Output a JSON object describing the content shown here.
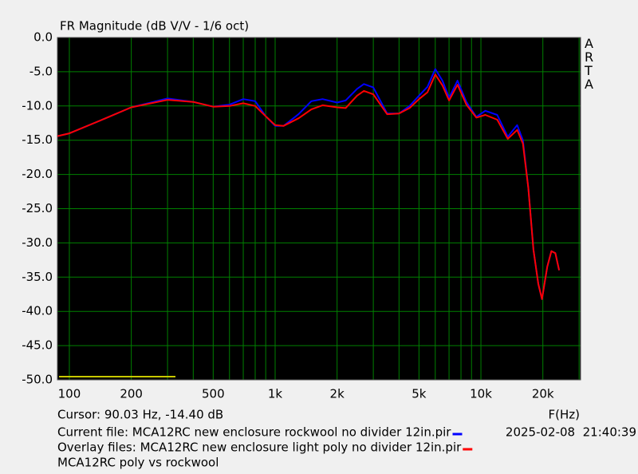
{
  "chart_data": {
    "type": "line",
    "title": "FR Magnitude (dB V/V - 1/6 oct)",
    "x_label": "F(Hz)",
    "watermark": "ARTA",
    "cursor": "Cursor: 90.03 Hz, -14.40 dB",
    "timestamp": "2025-02-08  21:40:39",
    "comment": "MCA12RC poly vs rockwool",
    "x_scale": "log",
    "grid": true,
    "xlim": [
      87.5,
      30500
    ],
    "ylim": [
      -50,
      0
    ],
    "xticks": [
      100,
      200,
      500,
      {
        "value": 1000,
        "label": "1k"
      },
      {
        "value": 2000,
        "label": "2k"
      },
      {
        "value": 5000,
        "label": "5k"
      },
      {
        "value": 10000,
        "label": "10k"
      },
      {
        "value": 20000,
        "label": "20k"
      }
    ],
    "x_minor_ticks": [
      300,
      400,
      600,
      700,
      800,
      900,
      3000,
      4000,
      6000,
      7000,
      8000,
      9000,
      30000
    ],
    "yticks": [
      {
        "value": 0,
        "label": "0.0"
      },
      {
        "value": -5,
        "label": "-5.0"
      },
      {
        "value": -10,
        "label": "-10.0"
      },
      {
        "value": -15,
        "label": "-15.0"
      },
      {
        "value": -20,
        "label": "-20.0"
      },
      {
        "value": -25,
        "label": "-25.0"
      },
      {
        "value": -30,
        "label": "-30.0"
      },
      {
        "value": -35,
        "label": "-35.0"
      },
      {
        "value": -40,
        "label": "-40.0"
      },
      {
        "value": -45,
        "label": "-45.0"
      },
      {
        "value": -50,
        "label": "-50.0"
      }
    ],
    "x": [
      87.5,
      100,
      150,
      200,
      300,
      400,
      500,
      600,
      700,
      800,
      900,
      1000,
      1100,
      1300,
      1500,
      1700,
      2000,
      2200,
      2500,
      2700,
      3000,
      3500,
      4000,
      4500,
      5000,
      5500,
      6000,
      6500,
      7000,
      7700,
      8500,
      9500,
      10500,
      12000,
      13500,
      15000,
      16000,
      17000,
      18000,
      19000,
      19800,
      21000,
      22000,
      23000,
      24000
    ],
    "series": [
      {
        "name": "Current file: MCA12RC new enclosure rockwool no divider 12in.pir",
        "color": "#0000ff",
        "values": [
          -14.4,
          -14.0,
          -11.8,
          -10.2,
          -8.9,
          -9.4,
          -10.1,
          -9.8,
          -9.0,
          -9.3,
          -11.5,
          -12.9,
          -12.9,
          -11.2,
          -9.3,
          -9.0,
          -9.5,
          -9.2,
          -7.5,
          -6.8,
          -7.3,
          -11.1,
          -11.1,
          -10.0,
          -8.5,
          -7.2,
          -4.6,
          -6.3,
          -8.8,
          -6.3,
          -9.4,
          -11.6,
          -10.7,
          -11.3,
          -14.5,
          -12.8,
          -15.0,
          -22,
          -31,
          -36,
          -38.2,
          -33.5,
          -31.2,
          -31.5,
          -34.0
        ]
      },
      {
        "name": "Overlay files: MCA12RC new enclosure light poly no divider 12in.pir",
        "color": "#ff0000",
        "values": [
          -14.4,
          -14.0,
          -11.8,
          -10.2,
          -9.1,
          -9.4,
          -10.1,
          -10.0,
          -9.6,
          -10.0,
          -11.5,
          -12.8,
          -12.9,
          -11.8,
          -10.5,
          -9.9,
          -10.2,
          -10.3,
          -8.5,
          -7.8,
          -8.3,
          -11.2,
          -11.1,
          -10.3,
          -9.0,
          -8.0,
          -5.4,
          -7.0,
          -9.2,
          -6.9,
          -9.8,
          -11.7,
          -11.3,
          -12.0,
          -14.8,
          -13.5,
          -15.5,
          -22,
          -31,
          -36,
          -38.2,
          -33.5,
          -31.2,
          -31.5,
          -34.0
        ]
      }
    ]
  }
}
